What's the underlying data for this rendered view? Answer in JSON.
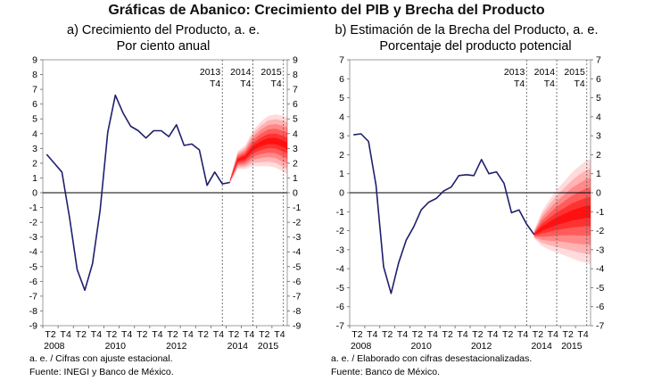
{
  "title": "Gráficas de Abanico: Crecimiento del PIB y Brecha del Producto",
  "colors": {
    "line": "#1f1f6e",
    "fan": "#ff0000",
    "axis": "#000000",
    "divider": "#555555"
  },
  "chart_data": [
    {
      "type": "line",
      "subtitle_1": "a) Crecimiento del Producto, a. e.",
      "subtitle_2": "Por ciento anual",
      "ylim": [
        -9,
        9
      ],
      "yticks": [
        9,
        8,
        7,
        6,
        5,
        4,
        3,
        2,
        1,
        0,
        -1,
        -2,
        -3,
        -4,
        -5,
        -6,
        -7,
        -8,
        -9
      ],
      "xlim": [
        0,
        32
      ],
      "x_tick_labels": [
        "T2",
        "T4",
        "T2",
        "T4",
        "T2",
        "T4",
        "T2",
        "T4",
        "T2",
        "T4",
        "T2",
        "T4",
        "T2",
        "T4",
        "T2",
        "T4"
      ],
      "x_year_labels": [
        {
          "label": "2008",
          "x": 1.5
        },
        {
          "label": "2010",
          "x": 9.5
        },
        {
          "label": "2012",
          "x": 17.5
        },
        {
          "label": "2014",
          "x": 25.5
        },
        {
          "label": "2015",
          "x": 29.5
        }
      ],
      "markers": [
        {
          "x": 23.5,
          "top": "2013",
          "bottom": "T4"
        },
        {
          "x": 27.5,
          "top": "2014",
          "bottom": "T4"
        },
        {
          "x": 31.5,
          "top": "2015",
          "bottom": "T4"
        }
      ],
      "series": [
        {
          "values": [
            [
              0.5,
              2.6
            ],
            [
              1.5,
              2.0
            ],
            [
              2.5,
              1.4
            ],
            [
              3.5,
              -1.7
            ],
            [
              4.5,
              -5.2
            ],
            [
              5.5,
              -6.6
            ],
            [
              6.5,
              -4.8
            ],
            [
              7.5,
              -1.2
            ],
            [
              8.5,
              4.1
            ],
            [
              9.5,
              6.6
            ],
            [
              10.5,
              5.4
            ],
            [
              11.5,
              4.5
            ],
            [
              12.5,
              4.2
            ],
            [
              13.5,
              3.7
            ],
            [
              14.5,
              4.2
            ],
            [
              15.5,
              4.2
            ],
            [
              16.5,
              3.8
            ],
            [
              17.5,
              4.6
            ],
            [
              18.5,
              3.2
            ],
            [
              19.5,
              3.3
            ],
            [
              20.5,
              2.9
            ],
            [
              21.5,
              0.5
            ],
            [
              22.5,
              1.4
            ],
            [
              23.5,
              0.6
            ],
            [
              24.5,
              0.7
            ]
          ]
        }
      ],
      "fan": {
        "x": [
          24.5,
          25.5,
          26.5,
          27.5,
          28.5,
          29.5,
          30.5,
          31.5,
          32
        ],
        "center": [
          0.8,
          2.2,
          2.4,
          3.0,
          3.3,
          3.5,
          3.5,
          3.3,
          3.2
        ],
        "spread": [
          0.15,
          0.6,
          0.8,
          1.2,
          1.5,
          1.7,
          1.8,
          1.9,
          1.9
        ]
      }
    },
    {
      "type": "line",
      "subtitle_1": "b) Estimación de la Brecha del Producto, a. e.",
      "subtitle_2": "Porcentaje del producto potencial",
      "ylim": [
        -7,
        7
      ],
      "yticks": [
        7,
        6,
        5,
        4,
        3,
        2,
        1,
        0,
        -1,
        -2,
        -3,
        -4,
        -5,
        -6,
        -7
      ],
      "xlim": [
        0,
        32
      ],
      "x_tick_labels": [
        "T2",
        "T4",
        "T2",
        "T4",
        "T2",
        "T4",
        "T2",
        "T4",
        "T2",
        "T4",
        "T2",
        "T4",
        "T2",
        "T4",
        "T2",
        "T4"
      ],
      "x_year_labels": [
        {
          "label": "2008",
          "x": 1.5
        },
        {
          "label": "2010",
          "x": 9.5
        },
        {
          "label": "2012",
          "x": 17.5
        },
        {
          "label": "2014",
          "x": 25.5
        },
        {
          "label": "2015",
          "x": 29.5
        }
      ],
      "markers": [
        {
          "x": 23.5,
          "top": "2013",
          "bottom": "T4"
        },
        {
          "x": 27.5,
          "top": "2014",
          "bottom": "T4"
        },
        {
          "x": 31.5,
          "top": "2015",
          "bottom": "T4"
        }
      ],
      "series": [
        {
          "values": [
            [
              0.5,
              3.05
            ],
            [
              1.5,
              3.1
            ],
            [
              2.5,
              2.7
            ],
            [
              3.5,
              0.4
            ],
            [
              4.5,
              -3.9
            ],
            [
              5.5,
              -5.3
            ],
            [
              6.5,
              -3.7
            ],
            [
              7.5,
              -2.5
            ],
            [
              8.5,
              -1.8
            ],
            [
              9.5,
              -0.9
            ],
            [
              10.5,
              -0.5
            ],
            [
              11.5,
              -0.3
            ],
            [
              12.5,
              0.1
            ],
            [
              13.5,
              0.3
            ],
            [
              14.5,
              0.9
            ],
            [
              15.5,
              0.95
            ],
            [
              16.5,
              0.9
            ],
            [
              17.5,
              1.75
            ],
            [
              18.5,
              1.0
            ],
            [
              19.5,
              1.1
            ],
            [
              20.5,
              0.5
            ],
            [
              21.5,
              -1.05
            ],
            [
              22.5,
              -0.9
            ],
            [
              23.5,
              -1.65
            ],
            [
              24.5,
              -2.2
            ]
          ]
        }
      ],
      "fan": {
        "x": [
          24.5,
          25.5,
          26.5,
          27.5,
          28.5,
          29.5,
          30.5,
          31.5,
          32
        ],
        "center": [
          -2.2,
          -1.9,
          -1.7,
          -1.5,
          -1.35,
          -1.2,
          -1.1,
          -1.0,
          -1.0
        ],
        "spread": [
          0.2,
          0.9,
          1.3,
          1.65,
          1.95,
          2.25,
          2.5,
          2.7,
          2.75
        ]
      }
    }
  ],
  "notes": {
    "left_1": "a. e. / Cifras con ajuste estacional.",
    "left_2": "Fuente: INEGI y Banco de México.",
    "right_1": "a. e. / Elaborado con cifras desestacionalizadas.",
    "right_2": "Fuente: Banco de México."
  }
}
